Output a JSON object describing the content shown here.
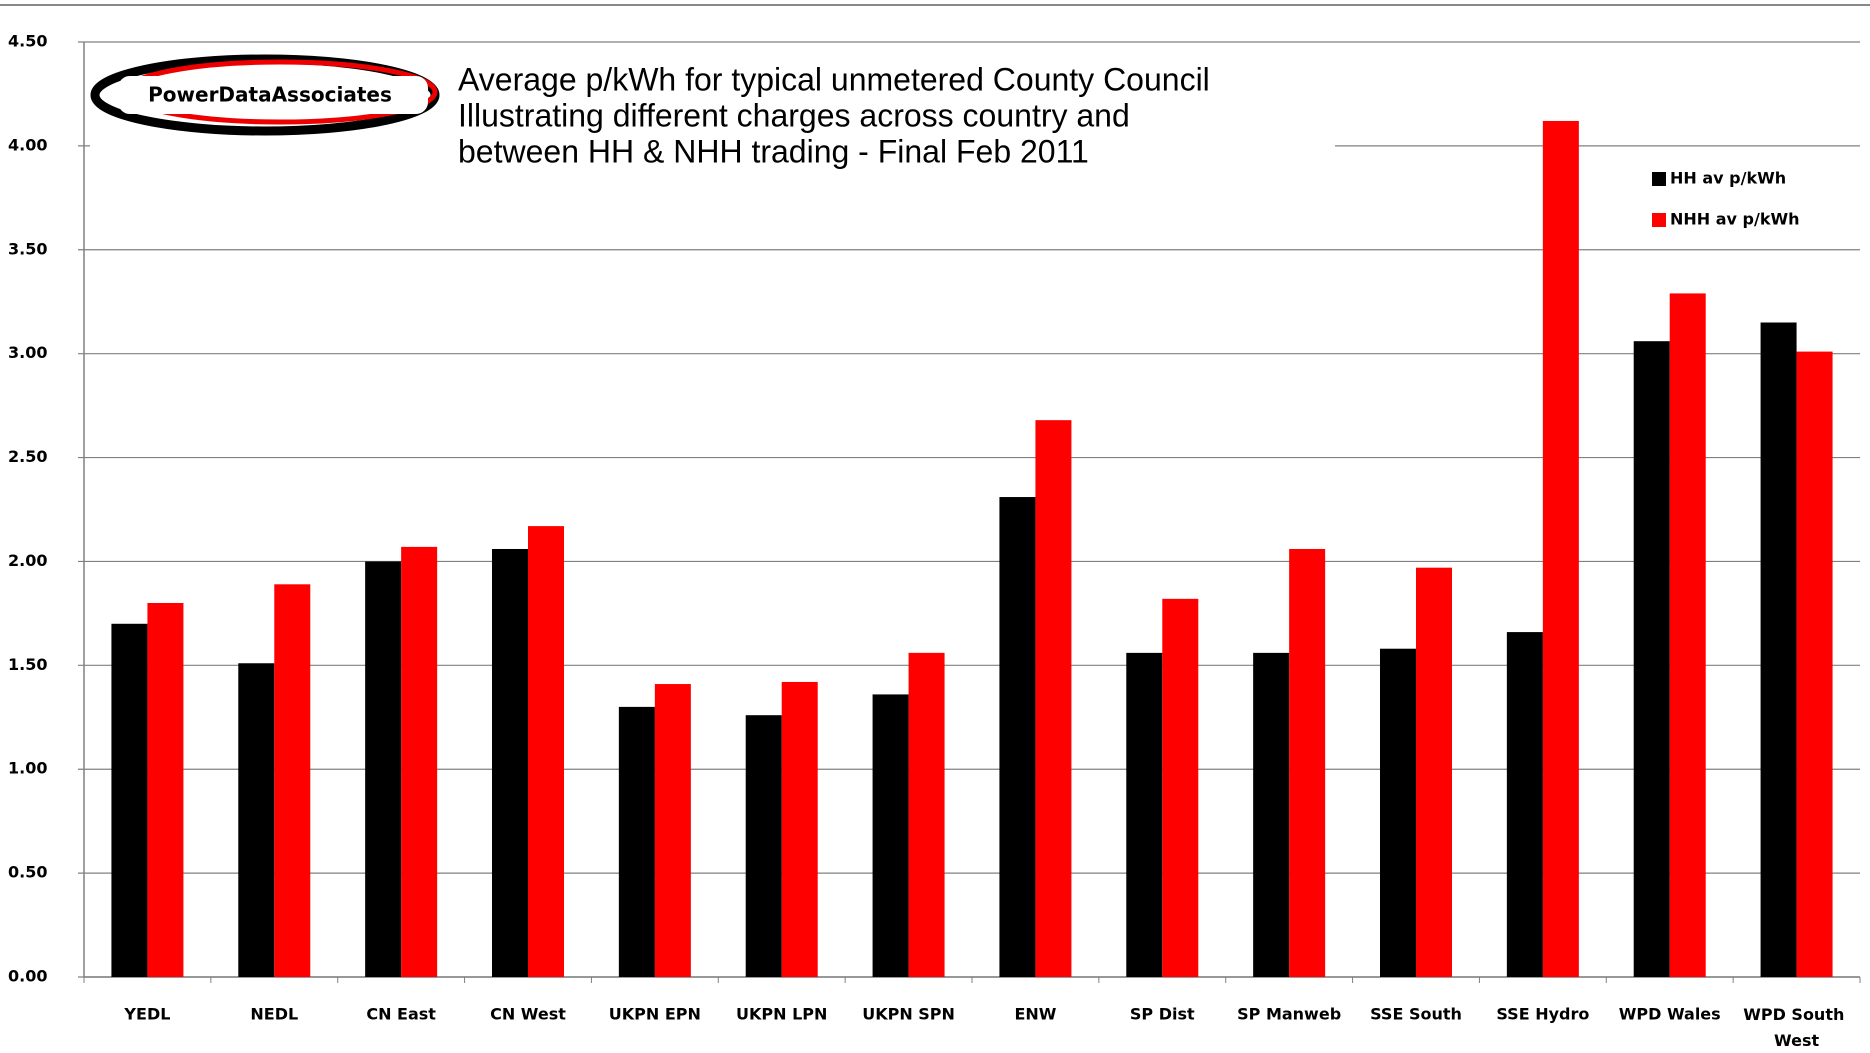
{
  "chart_data": {
    "type": "bar",
    "logo": "PowerDataAssociates",
    "title": [
      "Average p/kWh for typical unmetered County Council",
      "Illustrating different charges across country and",
      "between HH & NHH trading - Final Feb 2011"
    ],
    "categories": [
      "YEDL",
      "NEDL",
      "CN East",
      "CN West",
      "UKPN EPN",
      "UKPN LPN",
      "UKPN SPN",
      "ENW",
      "SP Dist",
      "SP Manweb",
      "SSE South",
      "SSE Hydro",
      "WPD Wales",
      "WPD South West"
    ],
    "series": [
      {
        "name": "HH av p/kWh",
        "color": "#000000",
        "values": [
          1.7,
          1.51,
          2.0,
          2.06,
          1.3,
          1.26,
          1.36,
          2.31,
          1.56,
          1.56,
          1.58,
          1.66,
          3.06,
          3.15
        ]
      },
      {
        "name": "NHH av p/kWh",
        "color": "#ff0000",
        "values": [
          1.8,
          1.89,
          2.07,
          2.17,
          1.41,
          1.42,
          1.56,
          2.68,
          1.82,
          2.06,
          1.97,
          4.12,
          3.29,
          3.01
        ]
      }
    ],
    "ylim": [
      0,
      4.5
    ],
    "yticks": [
      {
        "value": 0,
        "label": "0.00"
      },
      {
        "value": 0.5,
        "label": "0.50"
      },
      {
        "value": 1,
        "label": "1.00"
      },
      {
        "value": 1.5,
        "label": "1.50"
      },
      {
        "value": 2,
        "label": "2.00"
      },
      {
        "value": 2.5,
        "label": "2.50"
      },
      {
        "value": 3,
        "label": "3.00"
      },
      {
        "value": 3.5,
        "label": "3.50"
      },
      {
        "value": 4,
        "label": "4.00"
      },
      {
        "value": 4.5,
        "label": "4.50"
      }
    ],
    "grid": true,
    "legend": "top-right"
  }
}
